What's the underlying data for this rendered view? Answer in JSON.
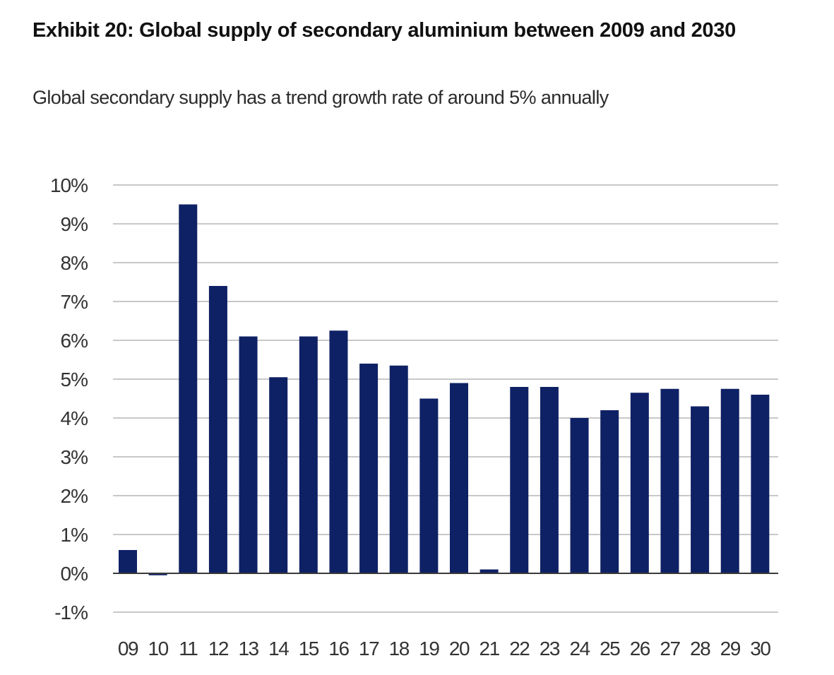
{
  "chart_data": {
    "type": "bar",
    "title": "Exhibit 20: Global supply of secondary aluminium between 2009 and 2030",
    "subtitle": "Global secondary supply has a trend growth rate of around 5% annually",
    "xlabel": "",
    "ylabel": "",
    "ylim": [
      -1,
      10
    ],
    "yticks": [
      "10%",
      "9%",
      "8%",
      "7%",
      "6%",
      "5%",
      "4%",
      "3%",
      "2%",
      "1%",
      "0%",
      "-1%"
    ],
    "grid": true,
    "categories": [
      "09",
      "10",
      "11",
      "12",
      "13",
      "14",
      "15",
      "16",
      "17",
      "18",
      "19",
      "20",
      "21",
      "22",
      "23",
      "24",
      "25",
      "26",
      "27",
      "28",
      "29",
      "30"
    ],
    "values": [
      0.6,
      -0.05,
      9.5,
      7.4,
      6.1,
      5.05,
      6.1,
      6.25,
      5.4,
      5.35,
      4.5,
      4.9,
      0.1,
      4.8,
      4.8,
      4.0,
      4.2,
      4.65,
      4.75,
      4.3,
      4.75,
      4.6
    ],
    "bar_color": "#0f2165"
  }
}
